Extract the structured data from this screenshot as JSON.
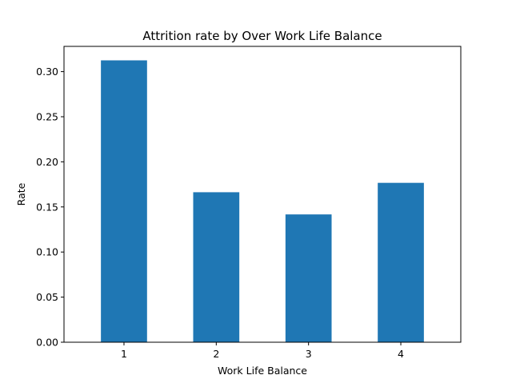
{
  "chart_data": {
    "type": "bar",
    "title": "Attrition rate by Over Work Life Balance",
    "xlabel": "Work Life Balance",
    "ylabel": "Rate",
    "categories": [
      "1",
      "2",
      "3",
      "4"
    ],
    "values": [
      0.3125,
      0.1663,
      0.1417,
      0.1767
    ],
    "ylim": [
      0,
      0.328
    ],
    "yticks": [
      "0.00",
      "0.05",
      "0.10",
      "0.15",
      "0.20",
      "0.25",
      "0.30"
    ],
    "bar_color": "#1f77b4",
    "grid": false,
    "legend": "none"
  }
}
